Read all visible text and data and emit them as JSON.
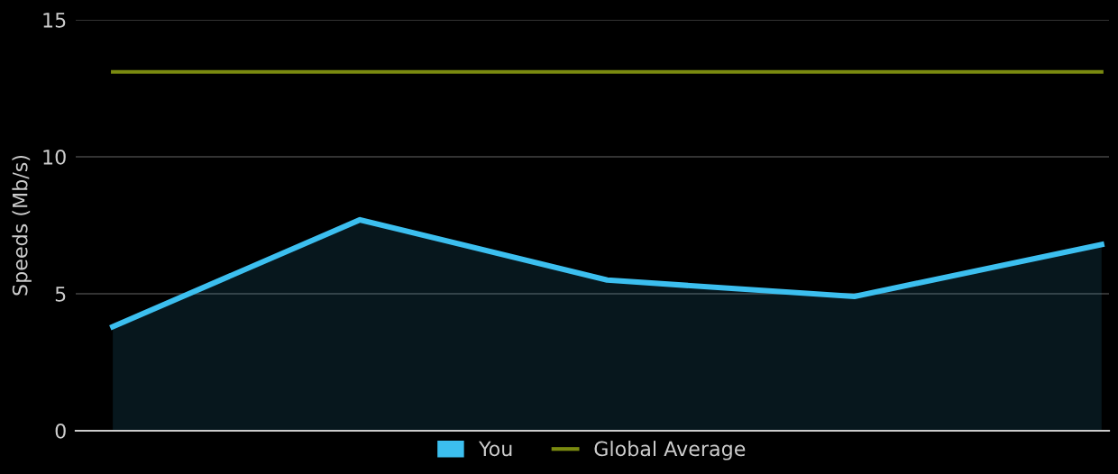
{
  "chart_data": {
    "type": "area",
    "ylabel": "Speeds (Mb/s)",
    "categories": [
      null,
      null,
      null,
      null,
      null
    ],
    "series": [
      {
        "name": "You",
        "color": "#3cbfef",
        "values": [
          3.8,
          7.7,
          5.5,
          4.9,
          6.8
        ]
      },
      {
        "name": "Global Average",
        "type": "line",
        "color": "#7a8a10",
        "values": [
          13.1,
          13.1,
          13.1,
          13.1,
          13.1
        ]
      }
    ],
    "ylim": [
      0,
      15
    ],
    "yticks": [
      0,
      5,
      10,
      15
    ],
    "grid": "y",
    "legend": "bottom",
    "marker": "none"
  }
}
